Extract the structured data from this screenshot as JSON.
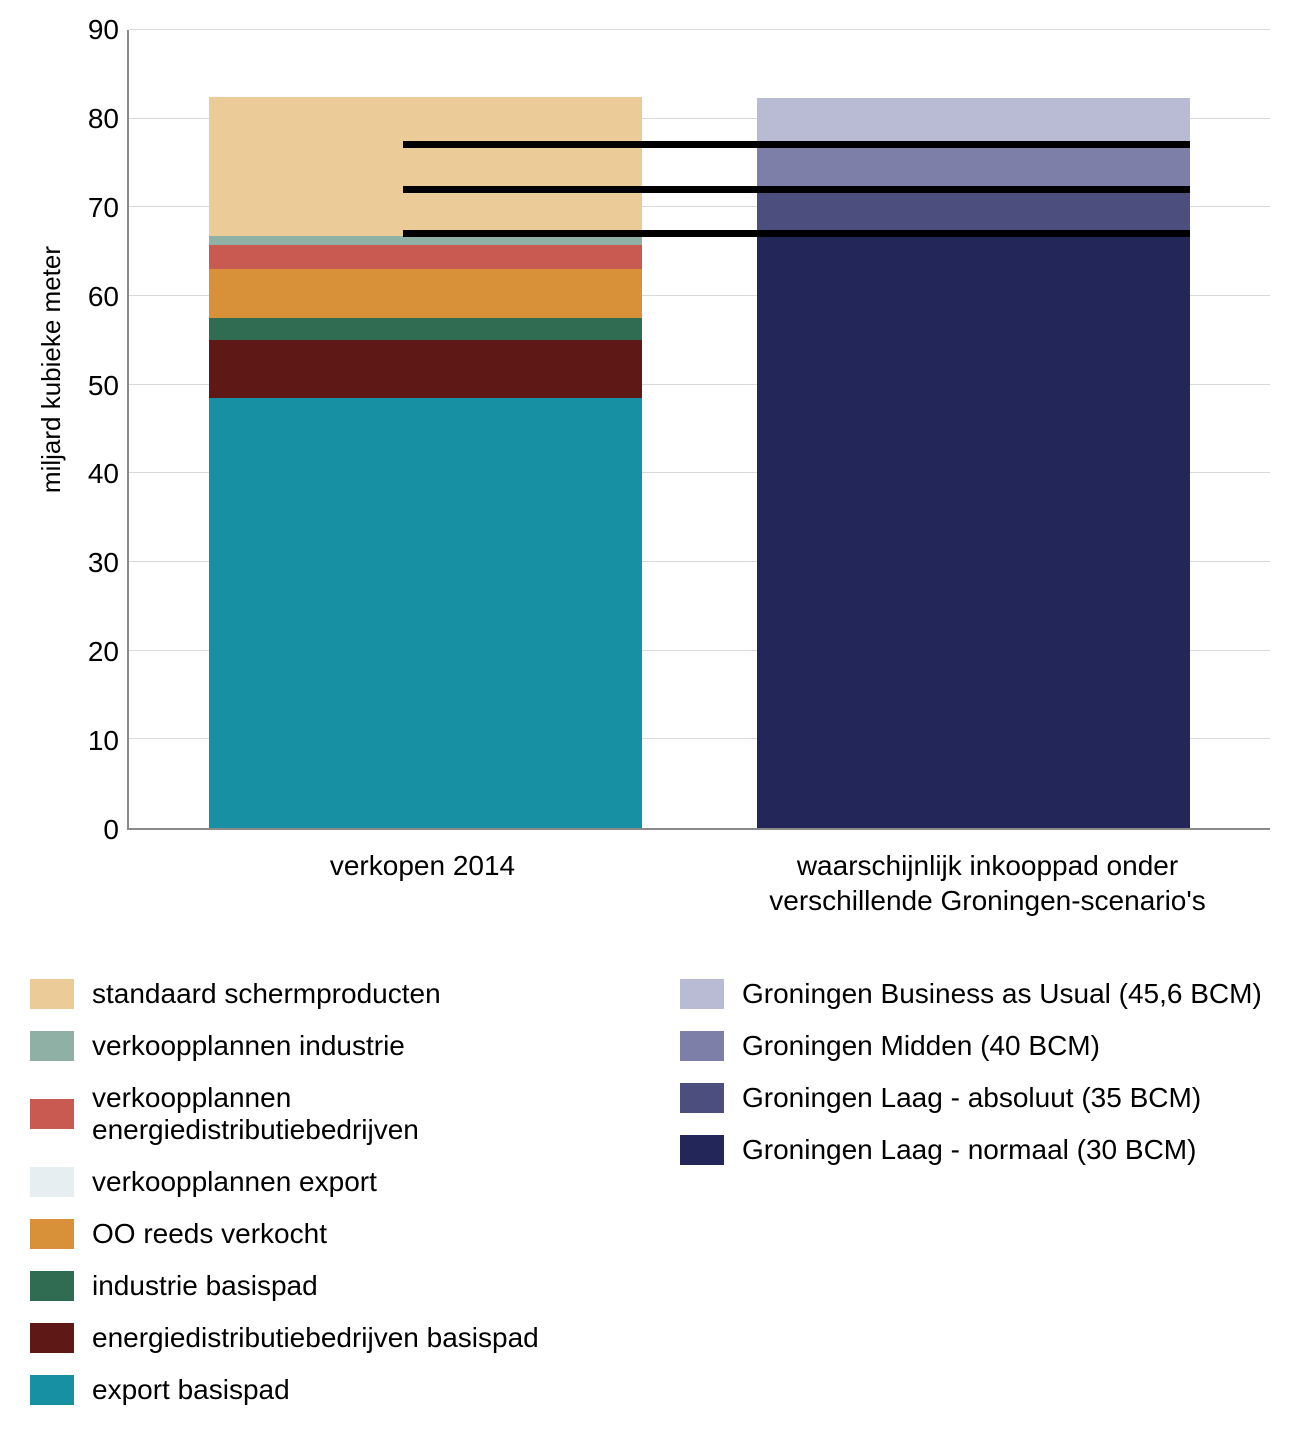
{
  "chart": {
    "type": "stacked-bar",
    "y_axis_label": "miljard kubieke meter",
    "y_min": 0,
    "y_max": 90,
    "y_tick_step": 10,
    "grid_color": "#d9d9d9",
    "axis_color": "#8a8a8a",
    "background": "#ffffff",
    "bar_width_pct": 38,
    "bars": [
      {
        "key": "verkopen",
        "x_label": "verkopen 2014",
        "left_pct": 7,
        "segments": [
          {
            "key": "export_basispad",
            "value": 48.5,
            "color": "#1790a4"
          },
          {
            "key": "energiedistributiebedrijven_basispad",
            "value": 6.5,
            "color": "#5e1816"
          },
          {
            "key": "industrie_basispad",
            "value": 2.5,
            "color": "#2f6c52"
          },
          {
            "key": "oo_reeds_verkocht",
            "value": 5.5,
            "color": "#d99139"
          },
          {
            "key": "verkoopplannen_export_dummy",
            "value": 0,
            "color": "#e6eef2"
          },
          {
            "key": "verkoopplannen_energie",
            "value": 2.8,
            "color": "#c85a52"
          },
          {
            "key": "verkoopplannen_industrie",
            "value": 1.0,
            "color": "#8fb0a4"
          },
          {
            "key": "standaard_schermproducten",
            "value": 15.7,
            "color": "#ebcb97"
          }
        ]
      },
      {
        "key": "inkoop",
        "x_label": "waarschijnlijk inkooppad onder verschillende Groningen-scenario's",
        "left_pct": 55,
        "segments": [
          {
            "key": "groningen_laag_normaal",
            "value": 67,
            "color": "#222658"
          },
          {
            "key": "groningen_laag_absoluut",
            "value": 5,
            "color": "#4c4e7d"
          },
          {
            "key": "groningen_midden",
            "value": 5,
            "color": "#7d7fa8"
          },
          {
            "key": "groningen_bau",
            "value": 5.3,
            "color": "#b9bad4"
          }
        ]
      }
    ],
    "connectors": [
      {
        "y_value": 67,
        "from_bar": 0,
        "from_offset_pct": 17,
        "to_bar": 1,
        "to_offset_pct": 38
      },
      {
        "y_value": 72,
        "from_bar": 0,
        "from_offset_pct": 17,
        "to_bar": 1,
        "to_offset_pct": 38
      },
      {
        "y_value": 77,
        "from_bar": 0,
        "from_offset_pct": 17,
        "to_bar": 1,
        "to_offset_pct": 38
      }
    ],
    "legend_left": [
      {
        "color": "#ebcb97",
        "label": "standaard schermproducten"
      },
      {
        "color": "#8fb0a4",
        "label": "verkoopplannen industrie"
      },
      {
        "color": "#c85a52",
        "label": "verkoopplannen energiedistributiebedrijven"
      },
      {
        "color": "#e6eef2",
        "label": "verkoopplannen export"
      },
      {
        "color": "#d99139",
        "label": "OO reeds verkocht"
      },
      {
        "color": "#2f6c52",
        "label": "industrie basispad"
      },
      {
        "color": "#5e1816",
        "label": "energiedistributiebedrijven basispad"
      },
      {
        "color": "#1790a4",
        "label": "export basispad"
      }
    ],
    "legend_right": [
      {
        "color": "#b9bad4",
        "label": "Groningen Business as Usual (45,6 BCM)"
      },
      {
        "color": "#7d7fa8",
        "label": "Groningen Midden (40 BCM)"
      },
      {
        "color": "#4c4e7d",
        "label": "Groningen Laag - absoluut (35 BCM)"
      },
      {
        "color": "#222658",
        "label": "Groningen Laag - normaal (30 BCM)"
      }
    ]
  }
}
